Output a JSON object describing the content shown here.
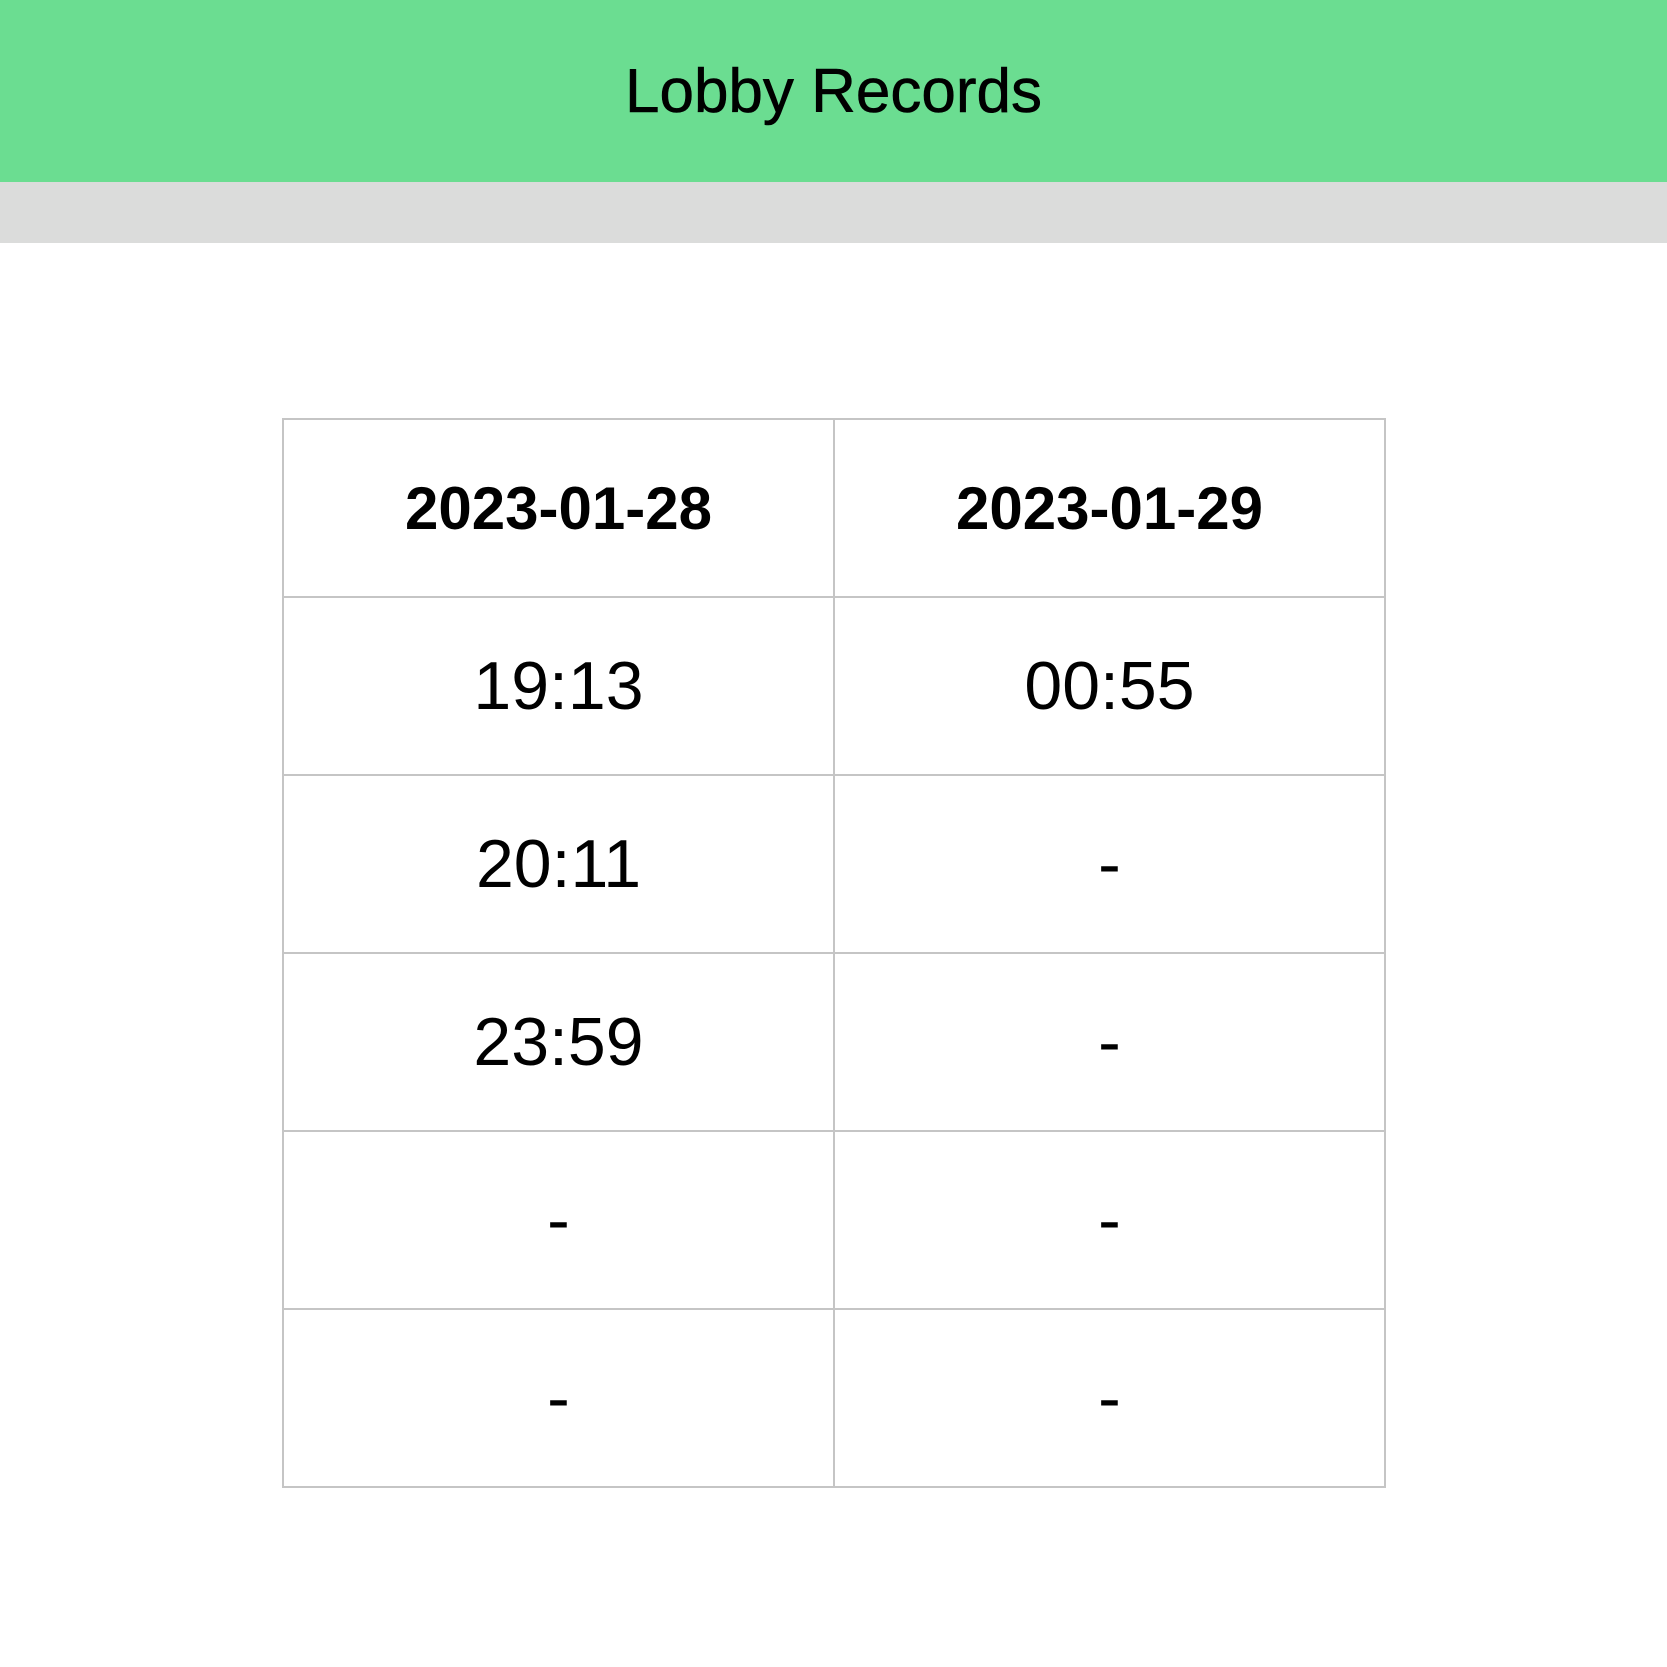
{
  "header": {
    "title": "Lobby Records"
  },
  "table": {
    "columns": [
      "2023-01-28",
      "2023-01-29"
    ],
    "rows": [
      [
        "19:13",
        "00:55"
      ],
      [
        "20:11",
        "-"
      ],
      [
        "23:59",
        "-"
      ],
      [
        "-",
        "-"
      ],
      [
        "-",
        "-"
      ]
    ]
  },
  "colors": {
    "header_bg": "#6bdd91",
    "sub_bar_bg": "#dbdcdb",
    "grid_line": "#c5c5c5"
  }
}
